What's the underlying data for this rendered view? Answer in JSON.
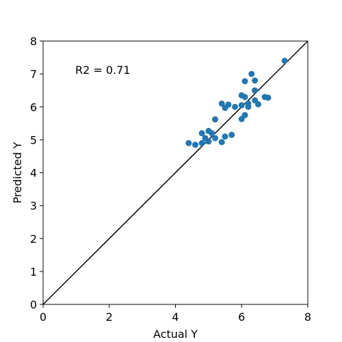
{
  "chart_data": {
    "type": "scatter",
    "xlabel": "Actual Y",
    "ylabel": "Predicted Y",
    "xlim": [
      0,
      8
    ],
    "ylim": [
      0,
      8
    ],
    "xticks": [
      "0",
      "2",
      "4",
      "6",
      "8"
    ],
    "yticks": [
      "0",
      "1",
      "2",
      "3",
      "4",
      "5",
      "6",
      "7",
      "8"
    ],
    "annotation": "R2 = 0.71",
    "point_color": "#1f77b4",
    "reference_line": {
      "from": [
        0,
        0
      ],
      "to": [
        8,
        8
      ],
      "color": "#000000"
    },
    "points": [
      {
        "x": 4.4,
        "y": 4.9
      },
      {
        "x": 4.6,
        "y": 4.85
      },
      {
        "x": 4.8,
        "y": 4.9
      },
      {
        "x": 4.8,
        "y": 5.2
      },
      {
        "x": 4.9,
        "y": 5.05
      },
      {
        "x": 5.0,
        "y": 4.95
      },
      {
        "x": 5.0,
        "y": 5.27
      },
      {
        "x": 5.1,
        "y": 5.2
      },
      {
        "x": 5.2,
        "y": 5.05
      },
      {
        "x": 5.2,
        "y": 5.62
      },
      {
        "x": 5.4,
        "y": 4.93
      },
      {
        "x": 5.4,
        "y": 6.1
      },
      {
        "x": 5.5,
        "y": 5.97
      },
      {
        "x": 5.5,
        "y": 5.1
      },
      {
        "x": 5.6,
        "y": 6.07
      },
      {
        "x": 5.7,
        "y": 5.15
      },
      {
        "x": 5.8,
        "y": 6.0
      },
      {
        "x": 6.0,
        "y": 6.05
      },
      {
        "x": 6.0,
        "y": 6.35
      },
      {
        "x": 6.0,
        "y": 5.63
      },
      {
        "x": 6.1,
        "y": 6.3
      },
      {
        "x": 6.1,
        "y": 5.75
      },
      {
        "x": 6.1,
        "y": 6.78
      },
      {
        "x": 6.2,
        "y": 6.1
      },
      {
        "x": 6.2,
        "y": 6.0
      },
      {
        "x": 6.3,
        "y": 7.0
      },
      {
        "x": 6.4,
        "y": 6.8
      },
      {
        "x": 6.4,
        "y": 6.5
      },
      {
        "x": 6.4,
        "y": 6.2
      },
      {
        "x": 6.5,
        "y": 6.08
      },
      {
        "x": 6.7,
        "y": 6.3
      },
      {
        "x": 6.8,
        "y": 6.28
      },
      {
        "x": 7.3,
        "y": 7.4
      }
    ]
  }
}
